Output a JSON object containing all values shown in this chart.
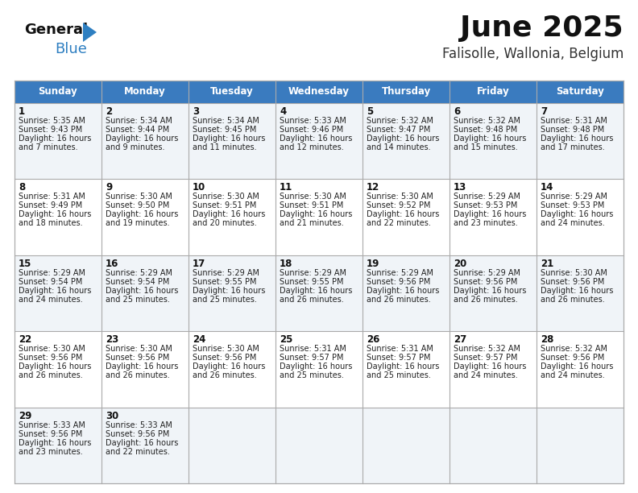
{
  "title": "June 2025",
  "subtitle": "Falisolle, Wallonia, Belgium",
  "header_color": "#3a7bbf",
  "header_text_color": "#ffffff",
  "days_of_week": [
    "Sunday",
    "Monday",
    "Tuesday",
    "Wednesday",
    "Thursday",
    "Friday",
    "Saturday"
  ],
  "row_colors": [
    "#f0f4f8",
    "#ffffff"
  ],
  "grid_color": "#aaaaaa",
  "background_color": "#ffffff",
  "calendar_data": [
    [
      {
        "day": "1",
        "sunrise": "5:35 AM",
        "sunset": "9:43 PM",
        "daylight_hours": 16,
        "daylight_minutes": 7
      },
      {
        "day": "2",
        "sunrise": "5:34 AM",
        "sunset": "9:44 PM",
        "daylight_hours": 16,
        "daylight_minutes": 9
      },
      {
        "day": "3",
        "sunrise": "5:34 AM",
        "sunset": "9:45 PM",
        "daylight_hours": 16,
        "daylight_minutes": 11
      },
      {
        "day": "4",
        "sunrise": "5:33 AM",
        "sunset": "9:46 PM",
        "daylight_hours": 16,
        "daylight_minutes": 12
      },
      {
        "day": "5",
        "sunrise": "5:32 AM",
        "sunset": "9:47 PM",
        "daylight_hours": 16,
        "daylight_minutes": 14
      },
      {
        "day": "6",
        "sunrise": "5:32 AM",
        "sunset": "9:48 PM",
        "daylight_hours": 16,
        "daylight_minutes": 15
      },
      {
        "day": "7",
        "sunrise": "5:31 AM",
        "sunset": "9:48 PM",
        "daylight_hours": 16,
        "daylight_minutes": 17
      }
    ],
    [
      {
        "day": "8",
        "sunrise": "5:31 AM",
        "sunset": "9:49 PM",
        "daylight_hours": 16,
        "daylight_minutes": 18
      },
      {
        "day": "9",
        "sunrise": "5:30 AM",
        "sunset": "9:50 PM",
        "daylight_hours": 16,
        "daylight_minutes": 19
      },
      {
        "day": "10",
        "sunrise": "5:30 AM",
        "sunset": "9:51 PM",
        "daylight_hours": 16,
        "daylight_minutes": 20
      },
      {
        "day": "11",
        "sunrise": "5:30 AM",
        "sunset": "9:51 PM",
        "daylight_hours": 16,
        "daylight_minutes": 21
      },
      {
        "day": "12",
        "sunrise": "5:30 AM",
        "sunset": "9:52 PM",
        "daylight_hours": 16,
        "daylight_minutes": 22
      },
      {
        "day": "13",
        "sunrise": "5:29 AM",
        "sunset": "9:53 PM",
        "daylight_hours": 16,
        "daylight_minutes": 23
      },
      {
        "day": "14",
        "sunrise": "5:29 AM",
        "sunset": "9:53 PM",
        "daylight_hours": 16,
        "daylight_minutes": 24
      }
    ],
    [
      {
        "day": "15",
        "sunrise": "5:29 AM",
        "sunset": "9:54 PM",
        "daylight_hours": 16,
        "daylight_minutes": 24
      },
      {
        "day": "16",
        "sunrise": "5:29 AM",
        "sunset": "9:54 PM",
        "daylight_hours": 16,
        "daylight_minutes": 25
      },
      {
        "day": "17",
        "sunrise": "5:29 AM",
        "sunset": "9:55 PM",
        "daylight_hours": 16,
        "daylight_minutes": 25
      },
      {
        "day": "18",
        "sunrise": "5:29 AM",
        "sunset": "9:55 PM",
        "daylight_hours": 16,
        "daylight_minutes": 26
      },
      {
        "day": "19",
        "sunrise": "5:29 AM",
        "sunset": "9:56 PM",
        "daylight_hours": 16,
        "daylight_minutes": 26
      },
      {
        "day": "20",
        "sunrise": "5:29 AM",
        "sunset": "9:56 PM",
        "daylight_hours": 16,
        "daylight_minutes": 26
      },
      {
        "day": "21",
        "sunrise": "5:30 AM",
        "sunset": "9:56 PM",
        "daylight_hours": 16,
        "daylight_minutes": 26
      }
    ],
    [
      {
        "day": "22",
        "sunrise": "5:30 AM",
        "sunset": "9:56 PM",
        "daylight_hours": 16,
        "daylight_minutes": 26
      },
      {
        "day": "23",
        "sunrise": "5:30 AM",
        "sunset": "9:56 PM",
        "daylight_hours": 16,
        "daylight_minutes": 26
      },
      {
        "day": "24",
        "sunrise": "5:30 AM",
        "sunset": "9:56 PM",
        "daylight_hours": 16,
        "daylight_minutes": 26
      },
      {
        "day": "25",
        "sunrise": "5:31 AM",
        "sunset": "9:57 PM",
        "daylight_hours": 16,
        "daylight_minutes": 25
      },
      {
        "day": "26",
        "sunrise": "5:31 AM",
        "sunset": "9:57 PM",
        "daylight_hours": 16,
        "daylight_minutes": 25
      },
      {
        "day": "27",
        "sunrise": "5:32 AM",
        "sunset": "9:57 PM",
        "daylight_hours": 16,
        "daylight_minutes": 24
      },
      {
        "day": "28",
        "sunrise": "5:32 AM",
        "sunset": "9:56 PM",
        "daylight_hours": 16,
        "daylight_minutes": 24
      }
    ],
    [
      {
        "day": "29",
        "sunrise": "5:33 AM",
        "sunset": "9:56 PM",
        "daylight_hours": 16,
        "daylight_minutes": 23
      },
      {
        "day": "30",
        "sunrise": "5:33 AM",
        "sunset": "9:56 PM",
        "daylight_hours": 16,
        "daylight_minutes": 22
      },
      null,
      null,
      null,
      null,
      null
    ]
  ],
  "fig_width": 7.92,
  "fig_height": 6.12,
  "dpi": 100
}
